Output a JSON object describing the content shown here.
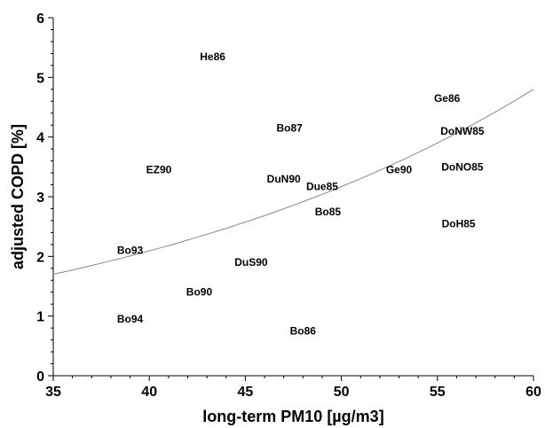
{
  "chart_data": {
    "type": "scatter",
    "title": "",
    "xlabel": "long-term PM10 [µg/m3]",
    "ylabel": "adjusted COPD [%]",
    "xlim": [
      35,
      60
    ],
    "ylim": [
      0,
      6
    ],
    "x_ticks": [
      35,
      40,
      45,
      50,
      55,
      60
    ],
    "y_ticks": [
      0,
      1,
      2,
      3,
      4,
      5,
      6
    ],
    "x_minor_step": 1,
    "y_minor_step": 0.2,
    "grid": false,
    "points": [
      {
        "label": "He86",
        "x": 43.3,
        "y": 5.35
      },
      {
        "label": "Ge86",
        "x": 55.5,
        "y": 4.65
      },
      {
        "label": "Bo87",
        "x": 47.3,
        "y": 4.15
      },
      {
        "label": "DoNW85",
        "x": 56.3,
        "y": 4.1
      },
      {
        "label": "EZ90",
        "x": 40.5,
        "y": 3.45
      },
      {
        "label": "Ge90",
        "x": 53.0,
        "y": 3.45
      },
      {
        "label": "DoNO85",
        "x": 56.3,
        "y": 3.5
      },
      {
        "label": "DuN90",
        "x": 47.0,
        "y": 3.3
      },
      {
        "label": "Due85",
        "x": 49.0,
        "y": 3.17
      },
      {
        "label": "Bo85",
        "x": 49.3,
        "y": 2.75
      },
      {
        "label": "DoH85",
        "x": 56.1,
        "y": 2.55
      },
      {
        "label": "Bo93",
        "x": 39.0,
        "y": 2.1
      },
      {
        "label": "DuS90",
        "x": 45.3,
        "y": 1.9
      },
      {
        "label": "Bo90",
        "x": 42.6,
        "y": 1.4
      },
      {
        "label": "Bo94",
        "x": 39.0,
        "y": 0.95
      },
      {
        "label": "Bo86",
        "x": 48.0,
        "y": 0.75
      }
    ],
    "trend_line": {
      "type": "exponential",
      "x": [
        35,
        40,
        45,
        50,
        55,
        60
      ],
      "y": [
        1.7,
        2.05,
        2.5,
        3.1,
        3.85,
        4.8
      ]
    }
  }
}
